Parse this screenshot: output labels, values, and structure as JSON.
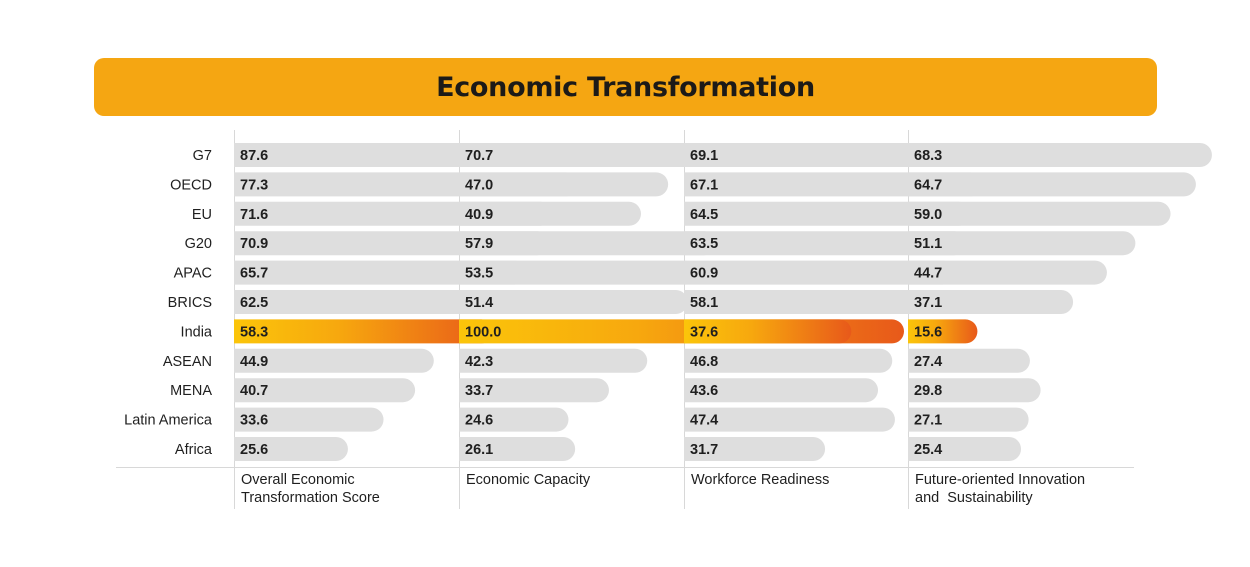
{
  "title": "Economic Transformation",
  "chart_data": {
    "type": "bar",
    "orientation": "horizontal",
    "title": "Economic Transformation",
    "categories": [
      "G7",
      "OECD",
      "EU",
      "G20",
      "APAC",
      "BRICS",
      "India",
      "ASEAN",
      "MENA",
      "Latin America",
      "Africa"
    ],
    "highlight_category": "India",
    "xlim": [
      0,
      100
    ],
    "series": [
      {
        "name": "Overall Economic Transformation Score",
        "name_lines": [
          "Overall Economic",
          "Transformation Score"
        ],
        "values": [
          87.6,
          77.3,
          71.6,
          70.9,
          65.7,
          62.5,
          58.3,
          44.9,
          40.7,
          33.6,
          25.6
        ],
        "value_labels": [
          "87.6",
          "77.3",
          "71.6",
          "70.9",
          "65.7",
          "62.5",
          "58.3",
          "44.9",
          "40.7",
          "33.6",
          "25.6"
        ]
      },
      {
        "name": "Economic Capacity",
        "name_lines": [
          "Economic Capacity"
        ],
        "values": [
          70.7,
          47.0,
          40.9,
          57.9,
          53.5,
          51.4,
          100.0,
          42.3,
          33.7,
          24.6,
          26.1
        ],
        "value_labels": [
          "70.7",
          "47.0",
          "40.9",
          "57.9",
          "53.5",
          "51.4",
          "100.0",
          "42.3",
          "33.7",
          "24.6",
          "26.1"
        ]
      },
      {
        "name": "Workforce Readiness",
        "name_lines": [
          "Workforce Readiness"
        ],
        "values": [
          69.1,
          67.1,
          64.5,
          63.5,
          60.9,
          58.1,
          37.6,
          46.8,
          43.6,
          47.4,
          31.7
        ],
        "value_labels": [
          "69.1",
          "67.1",
          "64.5",
          "63.5",
          "60.9",
          "58.1",
          "37.6",
          "46.8",
          "43.6",
          "47.4",
          "31.7"
        ]
      },
      {
        "name": "Future-oriented Innovation and Sustainability",
        "name_lines": [
          "Future-oriented Innovation",
          "and  Sustainability"
        ],
        "values": [
          68.3,
          64.7,
          59.0,
          51.1,
          44.7,
          37.1,
          15.6,
          27.4,
          29.8,
          27.1,
          25.4
        ],
        "value_labels": [
          "68.3",
          "64.7",
          "59.0",
          "51.1",
          "44.7",
          "37.1",
          "15.6",
          "27.4",
          "29.8",
          "27.1",
          "25.4"
        ]
      }
    ],
    "colors": {
      "banner": "#f5a612",
      "bar": "#dedede",
      "highlight_start": "#fbc50a",
      "highlight_end": "#e8591a",
      "gridline": "#d8d8d8"
    },
    "grid": false,
    "legend": "none"
  }
}
